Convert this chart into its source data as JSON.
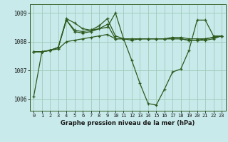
{
  "title": "Graphe pression niveau de la mer (hPa)",
  "bg_color": "#c8eaea",
  "grid_color": "#a0ccbb",
  "line_color": "#2d5a1e",
  "xlim": [
    -0.5,
    23.5
  ],
  "ylim": [
    1005.6,
    1009.3
  ],
  "yticks": [
    1006,
    1007,
    1008,
    1009
  ],
  "xticks": [
    0,
    1,
    2,
    3,
    4,
    5,
    6,
    7,
    8,
    9,
    10,
    11,
    12,
    13,
    14,
    15,
    16,
    17,
    18,
    19,
    20,
    21,
    22,
    23
  ],
  "series": [
    [
      1007.65,
      1007.65,
      1007.7,
      1007.75,
      1008.0,
      1008.05,
      1008.1,
      1008.15,
      1008.2,
      1008.25,
      1008.1,
      1008.1,
      1008.1,
      1008.1,
      1008.1,
      1008.1,
      1008.1,
      1008.15,
      1008.15,
      1008.1,
      1008.1,
      1008.1,
      1008.15,
      1008.2
    ],
    [
      1007.65,
      1007.65,
      1007.7,
      1007.8,
      1008.8,
      1008.65,
      1008.45,
      1008.4,
      1008.55,
      1008.8,
      1008.2,
      1008.1,
      1008.05,
      1008.1,
      1008.1,
      1008.1,
      1008.1,
      1008.1,
      1008.1,
      1008.05,
      1008.05,
      1008.1,
      1008.15,
      1008.2
    ],
    [
      1007.65,
      1007.65,
      1007.7,
      1007.8,
      1008.75,
      1008.4,
      1008.35,
      1008.4,
      1008.45,
      1008.6,
      1008.1,
      1008.1,
      1008.1,
      1008.1,
      1008.1,
      1008.1,
      1008.1,
      1008.1,
      1008.1,
      1008.05,
      1008.05,
      1008.05,
      1008.1,
      1008.2
    ],
    [
      1006.1,
      1007.65,
      1007.7,
      1007.8,
      1008.75,
      1008.35,
      1008.3,
      1008.35,
      1008.45,
      1008.5,
      1009.0,
      1008.1,
      1007.35,
      1006.55,
      1005.85,
      1005.8,
      1006.35,
      1006.95,
      1007.05,
      1007.7,
      1008.75,
      1008.75,
      1008.2,
      1008.2
    ]
  ]
}
